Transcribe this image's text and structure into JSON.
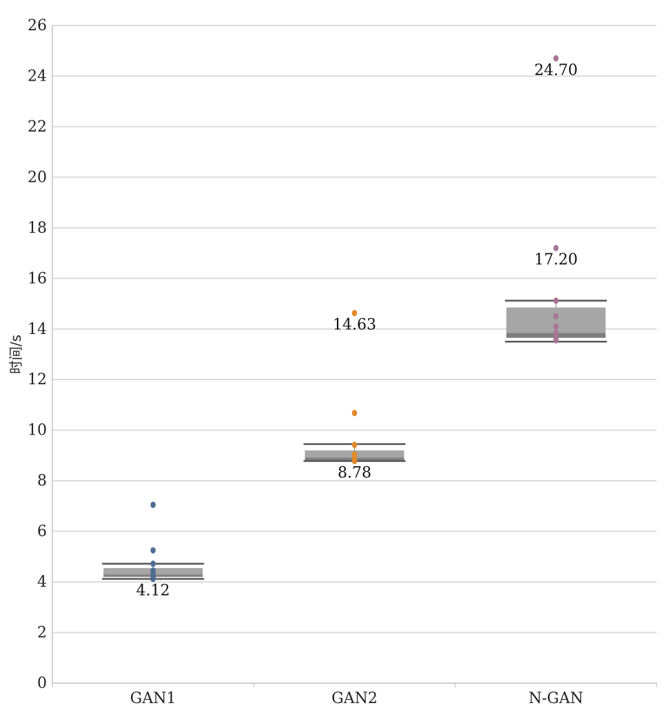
{
  "chart_data": {
    "type": "box",
    "title": "",
    "xlabel": "",
    "ylabel": "时间/s",
    "ylim": [
      0,
      26
    ],
    "yticks": [
      0,
      2,
      4,
      6,
      8,
      10,
      12,
      14,
      16,
      18,
      20,
      22,
      24,
      26
    ],
    "grid": true,
    "categories": [
      "GAN1",
      "GAN2",
      "N-GAN"
    ],
    "series": [
      {
        "category": "GAN1",
        "color": "#4f6d93",
        "points": [
          4.12,
          4.2,
          4.25,
          4.35,
          4.45,
          4.72,
          5.25,
          7.05
        ],
        "box": {
          "whisker_low": 4.12,
          "q1": 4.2,
          "median": 4.3,
          "q3": 4.55,
          "whisker_high": 4.72
        },
        "labels": [
          {
            "value": 4.12,
            "text": "4.12",
            "position": "below"
          }
        ]
      },
      {
        "category": "GAN2",
        "color": "#e08a2c",
        "points": [
          8.78,
          8.85,
          8.95,
          9.05,
          9.42,
          10.68,
          14.63
        ],
        "box": {
          "whisker_low": 8.78,
          "q1": 8.8,
          "median": 8.92,
          "q3": 9.2,
          "whisker_high": 9.45
        },
        "labels": [
          {
            "value": 8.78,
            "text": "8.78",
            "position": "below"
          },
          {
            "value": 14.63,
            "text": "14.63",
            "position": "below"
          }
        ]
      },
      {
        "category": "N-GAN",
        "color": "#a87595",
        "points": [
          13.55,
          13.65,
          13.75,
          13.85,
          14.1,
          14.5,
          15.12,
          17.2,
          24.7
        ],
        "box": {
          "whisker_low": 13.5,
          "q1": 13.65,
          "median": 13.85,
          "q3": 14.85,
          "whisker_high": 15.12
        },
        "labels": [
          {
            "value": 17.2,
            "text": "17.20",
            "position": "below"
          },
          {
            "value": 24.7,
            "text": "24.70",
            "position": "below"
          }
        ]
      }
    ]
  }
}
